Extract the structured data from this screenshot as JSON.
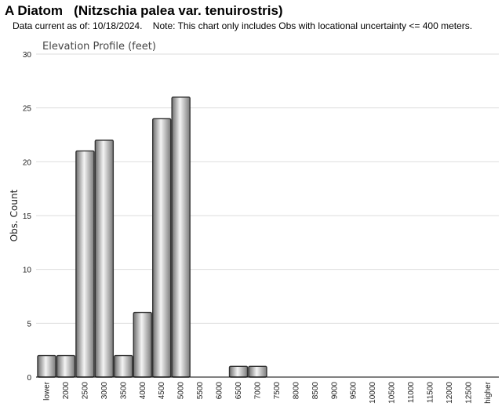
{
  "header": {
    "title": "A Diatom   (Nitzschia palea var. tenuirostris)",
    "note": "Data current as of: 10/18/2024.    Note: This chart only includes Obs with locational uncertainty <= 400 meters."
  },
  "chart_data": {
    "type": "bar",
    "title": "Elevation Profile (feet)",
    "xlabel": "",
    "ylabel": "Obs. Count",
    "ylim": [
      0,
      30
    ],
    "yticks": [
      0,
      5,
      10,
      15,
      20,
      25,
      30
    ],
    "grid": true,
    "categories": [
      "lower",
      "2000",
      "2500",
      "3000",
      "3500",
      "4000",
      "4500",
      "5000",
      "5500",
      "6000",
      "6500",
      "7000",
      "7500",
      "8000",
      "8500",
      "9000",
      "9500",
      "10000",
      "10500",
      "11000",
      "11500",
      "12000",
      "12500",
      "higher"
    ],
    "values": [
      2,
      2,
      21,
      22,
      2,
      6,
      24,
      26,
      0,
      0,
      1,
      1,
      0,
      0,
      0,
      0,
      0,
      0,
      0,
      0,
      0,
      0,
      0,
      0
    ]
  },
  "colors": {
    "bar_edge": "#333333",
    "bar_light": "#f2f2f2",
    "bar_dark": "#7a7a7a",
    "grid": "#dddddd",
    "axis": "#000000"
  }
}
